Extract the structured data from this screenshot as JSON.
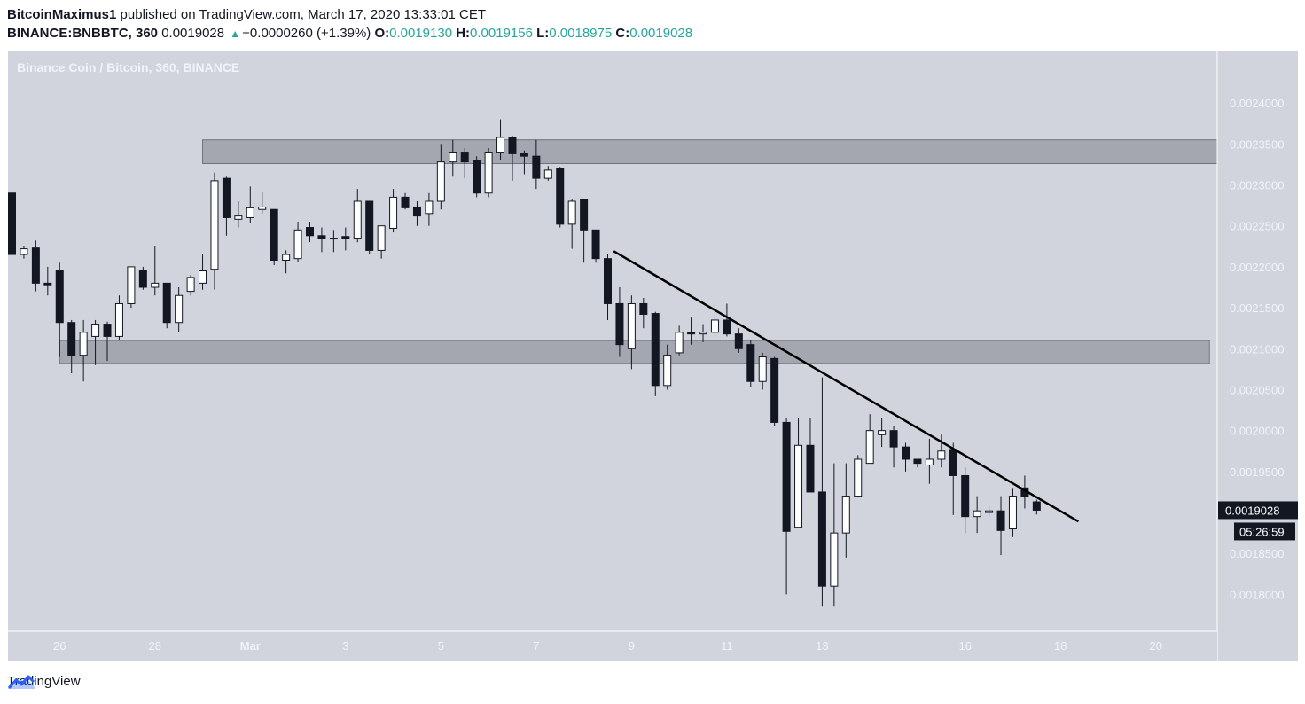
{
  "header": {
    "author": "BitcoinMaximus1",
    "published_text": "published on TradingView.com, March 17, 2020 13:33:01 CET",
    "symbol": "BINANCE:BNBBTC, 360",
    "last_price": "0.0019028",
    "change": "+0.0000260 (+1.39%)",
    "o_label": "O:",
    "o_value": "0.0019130",
    "h_label": "H:",
    "h_value": "0.0019156",
    "l_label": "L:",
    "l_value": "0.0018975",
    "c_label": "C:",
    "c_value": "0.0019028"
  },
  "footer": {
    "brand": "TradingView"
  },
  "colors": {
    "background": "#d1d4dc",
    "bull_candle": "#ffffff",
    "bear_candle": "#131722",
    "zone": "#9598a1",
    "price_label_bg": "#131722",
    "up": "#26a69a"
  },
  "chart_data": {
    "type": "candlestick",
    "title": "Binance Coin / Bitcoin, 360, BINANCE",
    "ylim": [
      0.001755,
      0.002464
    ],
    "x_ticks": [
      {
        "label": "26",
        "index": 4
      },
      {
        "label": "28",
        "index": 12
      },
      {
        "label": "Mar",
        "index": 20
      },
      {
        "label": "3",
        "index": 28
      },
      {
        "label": "5",
        "index": 36
      },
      {
        "label": "7",
        "index": 44
      },
      {
        "label": "9",
        "index": 52
      },
      {
        "label": "11",
        "index": 60
      },
      {
        "label": "13",
        "index": 68
      },
      {
        "label": "16",
        "index": 80
      },
      {
        "label": "18",
        "index": 88
      },
      {
        "label": "20",
        "index": 96
      }
    ],
    "y_ticks": [
      "0.0024000",
      "0.0023500",
      "0.0023000",
      "0.0022500",
      "0.0022000",
      "0.0021500",
      "0.0021000",
      "0.0020500",
      "0.0020000",
      "0.0019500",
      "0.0018500",
      "0.0018000"
    ],
    "current_price_label": "0.0019028",
    "countdown_label": "05:26:59",
    "candles": [
      {
        "o": 0.00229,
        "h": 0.00229,
        "l": 0.00221,
        "c": 0.002215
      },
      {
        "o": 0.002215,
        "h": 0.002225,
        "l": 0.00221,
        "c": 0.002222
      },
      {
        "o": 0.002223,
        "h": 0.002232,
        "l": 0.00217,
        "c": 0.00218
      },
      {
        "o": 0.00218,
        "h": 0.0022,
        "l": 0.002165,
        "c": 0.002178
      },
      {
        "o": 0.002195,
        "h": 0.002205,
        "l": 0.00209,
        "c": 0.002132
      },
      {
        "o": 0.002132,
        "h": 0.002135,
        "l": 0.00207,
        "c": 0.002092
      },
      {
        "o": 0.002092,
        "h": 0.002135,
        "l": 0.00206,
        "c": 0.00212
      },
      {
        "o": 0.002115,
        "h": 0.002135,
        "l": 0.00208,
        "c": 0.00213
      },
      {
        "o": 0.00213,
        "h": 0.002133,
        "l": 0.002085,
        "c": 0.002115
      },
      {
        "o": 0.002115,
        "h": 0.002165,
        "l": 0.00211,
        "c": 0.002155
      },
      {
        "o": 0.002155,
        "h": 0.0022,
        "l": 0.00215,
        "c": 0.0022
      },
      {
        "o": 0.002195,
        "h": 0.0022,
        "l": 0.002172,
        "c": 0.002175
      },
      {
        "o": 0.002175,
        "h": 0.002225,
        "l": 0.002165,
        "c": 0.00218
      },
      {
        "o": 0.00218,
        "h": 0.00218,
        "l": 0.002125,
        "c": 0.002132
      },
      {
        "o": 0.002132,
        "h": 0.002175,
        "l": 0.00212,
        "c": 0.002165
      },
      {
        "o": 0.00217,
        "h": 0.00219,
        "l": 0.002165,
        "c": 0.002187
      },
      {
        "o": 0.00218,
        "h": 0.002215,
        "l": 0.002172,
        "c": 0.002195
      },
      {
        "o": 0.002197,
        "h": 0.002315,
        "l": 0.002172,
        "c": 0.002305
      },
      {
        "o": 0.002308,
        "h": 0.00231,
        "l": 0.002238,
        "c": 0.00226
      },
      {
        "o": 0.002258,
        "h": 0.00228,
        "l": 0.002248,
        "c": 0.002262
      },
      {
        "o": 0.00226,
        "h": 0.002298,
        "l": 0.002253,
        "c": 0.002272
      },
      {
        "o": 0.00227,
        "h": 0.002292,
        "l": 0.002265,
        "c": 0.002273
      },
      {
        "o": 0.00227,
        "h": 0.00227,
        "l": 0.002202,
        "c": 0.002208
      },
      {
        "o": 0.002208,
        "h": 0.00222,
        "l": 0.002192,
        "c": 0.002215
      },
      {
        "o": 0.00221,
        "h": 0.002255,
        "l": 0.002206,
        "c": 0.002245
      },
      {
        "o": 0.002248,
        "h": 0.002255,
        "l": 0.00223,
        "c": 0.002238
      },
      {
        "o": 0.002238,
        "h": 0.002248,
        "l": 0.002218,
        "c": 0.002235
      },
      {
        "o": 0.002235,
        "h": 0.002245,
        "l": 0.002218,
        "c": 0.002235
      },
      {
        "o": 0.002237,
        "h": 0.002248,
        "l": 0.00222,
        "c": 0.002235
      },
      {
        "o": 0.002235,
        "h": 0.002295,
        "l": 0.00223,
        "c": 0.00228
      },
      {
        "o": 0.00228,
        "h": 0.00228,
        "l": 0.002215,
        "c": 0.00222
      },
      {
        "o": 0.00222,
        "h": 0.00225,
        "l": 0.00221,
        "c": 0.00225
      },
      {
        "o": 0.002247,
        "h": 0.002295,
        "l": 0.002242,
        "c": 0.002285
      },
      {
        "o": 0.002285,
        "h": 0.00229,
        "l": 0.00227,
        "c": 0.002272
      },
      {
        "o": 0.002273,
        "h": 0.00228,
        "l": 0.00225,
        "c": 0.002262
      },
      {
        "o": 0.002265,
        "h": 0.00229,
        "l": 0.00225,
        "c": 0.00228
      },
      {
        "o": 0.00228,
        "h": 0.00235,
        "l": 0.00227,
        "c": 0.002328
      },
      {
        "o": 0.002328,
        "h": 0.002355,
        "l": 0.00231,
        "c": 0.00234
      },
      {
        "o": 0.00234,
        "h": 0.002345,
        "l": 0.002308,
        "c": 0.002328
      },
      {
        "o": 0.00233,
        "h": 0.002335,
        "l": 0.002285,
        "c": 0.00229
      },
      {
        "o": 0.00229,
        "h": 0.002345,
        "l": 0.002285,
        "c": 0.00234
      },
      {
        "o": 0.00234,
        "h": 0.00238,
        "l": 0.00233,
        "c": 0.002358
      },
      {
        "o": 0.002358,
        "h": 0.00236,
        "l": 0.002305,
        "c": 0.002338
      },
      {
        "o": 0.002338,
        "h": 0.002342,
        "l": 0.002313,
        "c": 0.002335
      },
      {
        "o": 0.002335,
        "h": 0.002355,
        "l": 0.002295,
        "c": 0.002308
      },
      {
        "o": 0.002308,
        "h": 0.002323,
        "l": 0.002305,
        "c": 0.002318
      },
      {
        "o": 0.00232,
        "h": 0.002322,
        "l": 0.002248,
        "c": 0.002252
      },
      {
        "o": 0.002252,
        "h": 0.002282,
        "l": 0.002222,
        "c": 0.00228
      },
      {
        "o": 0.002282,
        "h": 0.002282,
        "l": 0.002205,
        "c": 0.002245
      },
      {
        "o": 0.002245,
        "h": 0.002245,
        "l": 0.002205,
        "c": 0.00221
      },
      {
        "o": 0.00221,
        "h": 0.002215,
        "l": 0.002135,
        "c": 0.002155
      },
      {
        "o": 0.002155,
        "h": 0.002175,
        "l": 0.00209,
        "c": 0.002105
      },
      {
        "o": 0.0021,
        "h": 0.002165,
        "l": 0.002075,
        "c": 0.002155
      },
      {
        "o": 0.002155,
        "h": 0.002162,
        "l": 0.002125,
        "c": 0.002142
      },
      {
        "o": 0.002143,
        "h": 0.002145,
        "l": 0.002042,
        "c": 0.002055
      },
      {
        "o": 0.002055,
        "h": 0.002105,
        "l": 0.00205,
        "c": 0.002092
      },
      {
        "o": 0.002095,
        "h": 0.002128,
        "l": 0.002092,
        "c": 0.00212
      },
      {
        "o": 0.00212,
        "h": 0.002138,
        "l": 0.002105,
        "c": 0.002118
      },
      {
        "o": 0.002118,
        "h": 0.00213,
        "l": 0.002108,
        "c": 0.00212
      },
      {
        "o": 0.00212,
        "h": 0.002155,
        "l": 0.002115,
        "c": 0.002135
      },
      {
        "o": 0.002135,
        "h": 0.002155,
        "l": 0.002115,
        "c": 0.002118
      },
      {
        "o": 0.002118,
        "h": 0.002125,
        "l": 0.002095,
        "c": 0.0021
      },
      {
        "o": 0.002105,
        "h": 0.00211,
        "l": 0.002053,
        "c": 0.00206
      },
      {
        "o": 0.00206,
        "h": 0.002095,
        "l": 0.00205,
        "c": 0.00209
      },
      {
        "o": 0.002088,
        "h": 0.00209,
        "l": 0.002005,
        "c": 0.00201
      },
      {
        "o": 0.00201,
        "h": 0.002015,
        "l": 0.0018,
        "c": 0.001877
      },
      {
        "o": 0.001882,
        "h": 0.002015,
        "l": 0.001882,
        "c": 0.001982
      },
      {
        "o": 0.001982,
        "h": 0.002015,
        "l": 0.001925,
        "c": 0.001925
      },
      {
        "o": 0.001925,
        "h": 0.002065,
        "l": 0.001785,
        "c": 0.00181
      },
      {
        "o": 0.00181,
        "h": 0.00196,
        "l": 0.001785,
        "c": 0.001875
      },
      {
        "o": 0.001875,
        "h": 0.00196,
        "l": 0.001845,
        "c": 0.00192
      },
      {
        "o": 0.00192,
        "h": 0.00197,
        "l": 0.00192,
        "c": 0.001965
      },
      {
        "o": 0.00196,
        "h": 0.00202,
        "l": 0.00196,
        "c": 0.002
      },
      {
        "o": 0.001995,
        "h": 0.002015,
        "l": 0.00198,
        "c": 0.002
      },
      {
        "o": 0.002,
        "h": 0.002005,
        "l": 0.001955,
        "c": 0.00198
      },
      {
        "o": 0.00198,
        "h": 0.001985,
        "l": 0.00195,
        "c": 0.001965
      },
      {
        "o": 0.001965,
        "h": 0.001965,
        "l": 0.001955,
        "c": 0.00196
      },
      {
        "o": 0.001958,
        "h": 0.00199,
        "l": 0.001935,
        "c": 0.001965
      },
      {
        "o": 0.001965,
        "h": 0.001995,
        "l": 0.001955,
        "c": 0.001975
      },
      {
        "o": 0.001977,
        "h": 0.001985,
        "l": 0.001897,
        "c": 0.001945
      },
      {
        "o": 0.001945,
        "h": 0.001955,
        "l": 0.001875,
        "c": 0.001895
      },
      {
        "o": 0.001895,
        "h": 0.00192,
        "l": 0.001875,
        "c": 0.001902
      },
      {
        "o": 0.0019,
        "h": 0.001908,
        "l": 0.001895,
        "c": 0.001902
      },
      {
        "o": 0.001902,
        "h": 0.00192,
        "l": 0.001848,
        "c": 0.001878
      },
      {
        "o": 0.00188,
        "h": 0.00193,
        "l": 0.00187,
        "c": 0.00192
      },
      {
        "o": 0.00193,
        "h": 0.001945,
        "l": 0.001905,
        "c": 0.00192
      },
      {
        "o": 0.001913,
        "h": 0.0019156,
        "l": 0.0018975,
        "c": 0.0019028
      }
    ],
    "zones": [
      {
        "from_index": 16,
        "to_index": "axis",
        "y_low": 0.002326,
        "y_high": 0.002355
      },
      {
        "from_index": 4,
        "to_index": 100.5,
        "y_low": 0.002082,
        "y_high": 0.00211
      }
    ],
    "trendline": {
      "from": {
        "index": 50.5,
        "y": 0.002219
      },
      "to": {
        "index": 89.5,
        "y": 0.001889
      }
    }
  }
}
